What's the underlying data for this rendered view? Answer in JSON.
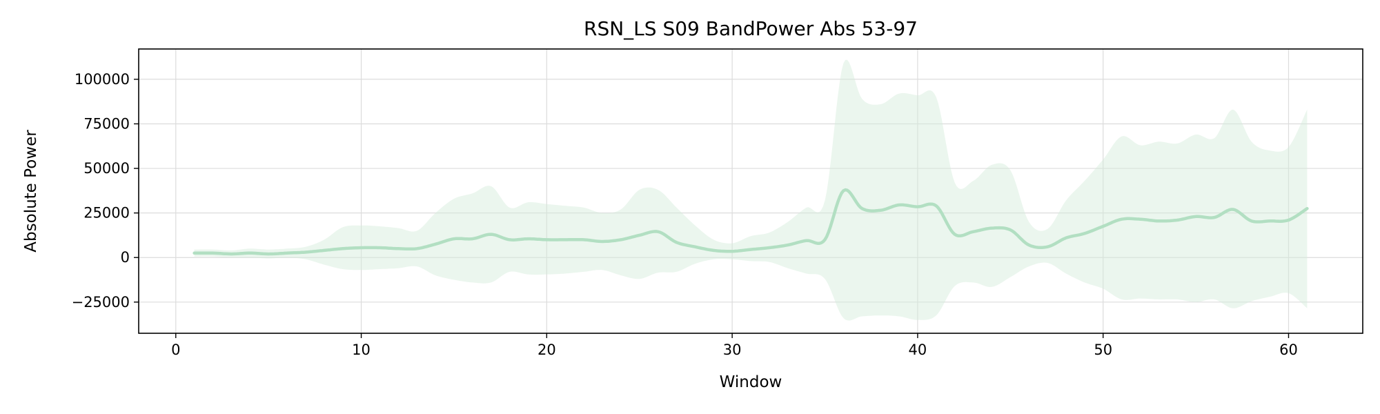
{
  "chart_data": {
    "type": "line",
    "title": "RSN_LS S09 BandPower Abs 53-97",
    "xlabel": "Window",
    "ylabel": "Absolute Power",
    "xlim": [
      -2,
      64
    ],
    "ylim": [
      -42500,
      117000
    ],
    "xticks": [
      0,
      10,
      20,
      30,
      40,
      50,
      60
    ],
    "yticks": [
      -25000,
      0,
      25000,
      50000,
      75000,
      100000
    ],
    "xtick_labels": [
      "0",
      "10",
      "20",
      "30",
      "40",
      "50",
      "60"
    ],
    "ytick_labels": [
      "−25000",
      "0",
      "25000",
      "50000",
      "75000",
      "100000"
    ],
    "grid": true,
    "colors": {
      "line": "#b2dfc2",
      "band": "#d3ecd9",
      "grid": "#dcdcdc"
    },
    "series": [
      {
        "x": [
          1,
          2,
          3,
          4,
          5,
          6,
          7,
          8,
          9,
          10,
          11,
          12,
          13,
          14,
          15,
          16,
          17,
          18,
          19,
          20,
          21,
          22,
          23,
          24,
          25,
          26,
          27,
          28,
          29,
          30,
          31,
          32,
          33,
          34,
          35,
          36,
          37,
          38,
          39,
          40,
          41,
          42,
          43,
          44,
          45,
          46,
          47,
          48,
          49,
          50,
          51,
          52,
          53,
          54,
          55,
          56,
          57,
          58,
          59,
          60,
          61
        ],
        "y": [
          2500,
          2500,
          2000,
          2500,
          2000,
          2500,
          3000,
          4000,
          5000,
          5500,
          5500,
          5000,
          5000,
          7500,
          10500,
          10500,
          13000,
          10000,
          10500,
          10000,
          10000,
          10000,
          9000,
          10000,
          12500,
          14500,
          8500,
          6000,
          4000,
          3500,
          4500,
          5500,
          7000,
          9500,
          10000,
          37500,
          27500,
          26500,
          29500,
          28500,
          29000,
          13000,
          14500,
          16500,
          15500,
          7000,
          6000,
          11000,
          13500,
          17500,
          21500,
          21500,
          20500,
          21000,
          23000,
          22500,
          27000,
          20500,
          20500,
          21000,
          27500
        ],
        "upper": [
          4500,
          4500,
          4000,
          5000,
          4500,
          5000,
          6000,
          10000,
          17000,
          18000,
          17500,
          16500,
          15000,
          25000,
          33000,
          36000,
          40000,
          28000,
          31000,
          30000,
          29000,
          28000,
          25000,
          27000,
          38000,
          38000,
          28000,
          18000,
          10000,
          8000,
          12000,
          14000,
          20000,
          28000,
          32000,
          109000,
          89000,
          86000,
          92000,
          91000,
          90000,
          42000,
          43000,
          52000,
          49000,
          20000,
          16000,
          32000,
          43000,
          55000,
          68000,
          63000,
          65000,
          64000,
          69000,
          67000,
          83000,
          65000,
          60000,
          62000,
          83000
        ],
        "lower": [
          500,
          500,
          0,
          0,
          -500,
          0,
          -1000,
          -4000,
          -6500,
          -7000,
          -6500,
          -6000,
          -5000,
          -10000,
          -12500,
          -14000,
          -14000,
          -8000,
          -9500,
          -9500,
          -9000,
          -8000,
          -7000,
          -10000,
          -12000,
          -8500,
          -8000,
          -3500,
          -1000,
          -1000,
          -2000,
          -2500,
          -6000,
          -9000,
          -12000,
          -34000,
          -33000,
          -32500,
          -33000,
          -35000,
          -32500,
          -16000,
          -14000,
          -16500,
          -11000,
          -5000,
          -3000,
          -9000,
          -14000,
          -17500,
          -23500,
          -23000,
          -23500,
          -23500,
          -25000,
          -23500,
          -28500,
          -24500,
          -22000,
          -20000,
          -28500
        ]
      }
    ]
  }
}
